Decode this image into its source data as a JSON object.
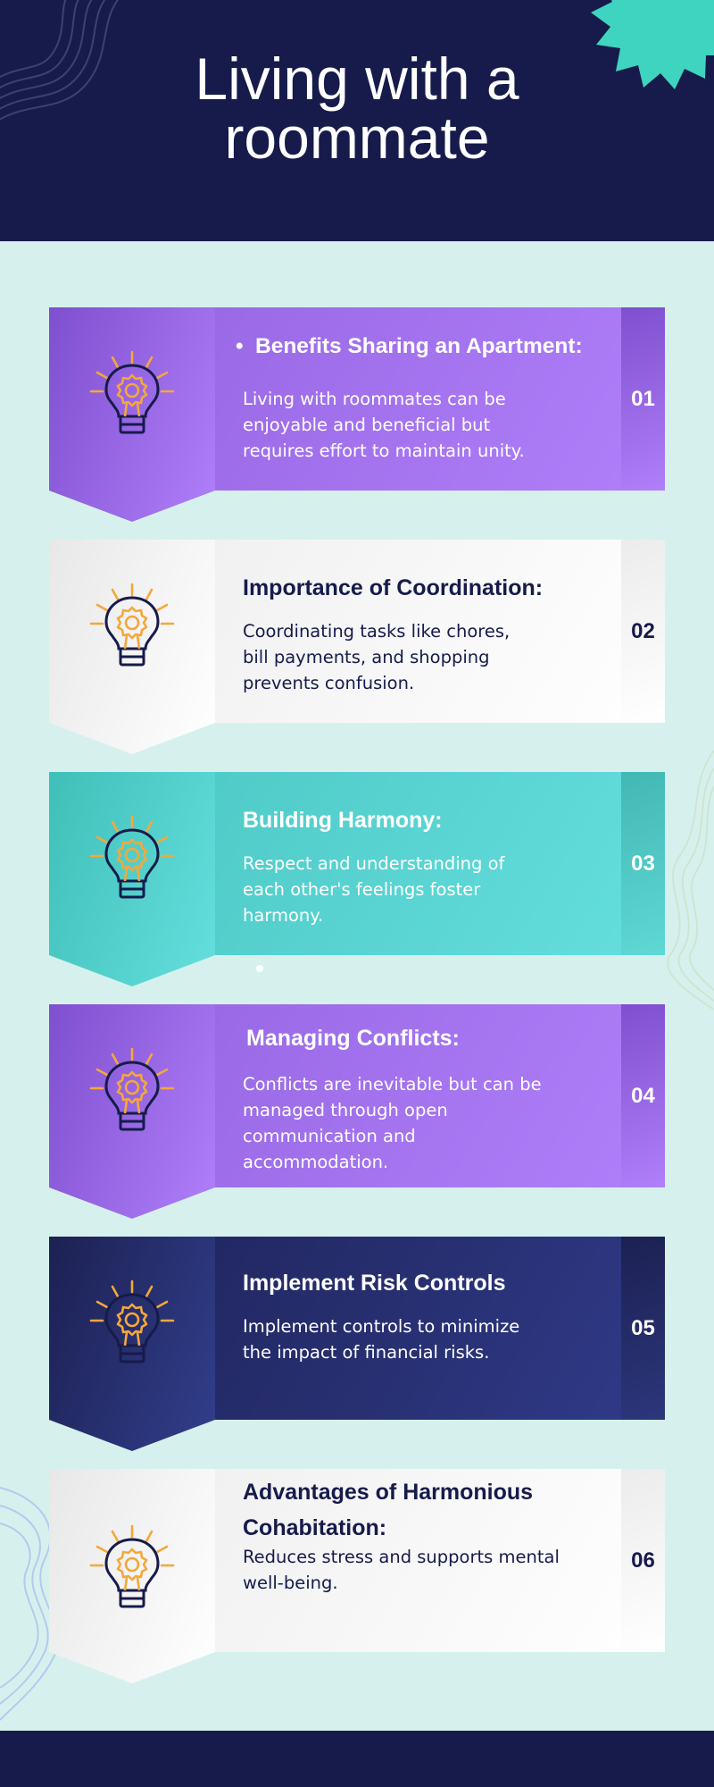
{
  "header": {
    "title_line1": "Living with a",
    "title_line2": "roommate"
  },
  "colors": {
    "navy": "#161b4b",
    "background": "#d6f1ed",
    "purple": "#9a6ae6",
    "teal": "#50cbc8",
    "accent_orange": "#f4a83a",
    "star_teal": "#3fd4c0"
  },
  "cards": [
    {
      "number": "01",
      "title": "Benefits Sharing an Apartment:",
      "text": "Living with roommates can be enjoyable and beneficial but requires effort to maintain unity.",
      "theme": "purple",
      "icon": "lightbulb-gear-icon"
    },
    {
      "number": "02",
      "title": "Importance of Coordination:",
      "text": "Coordinating tasks like chores, bill payments, and shopping prevents confusion.",
      "theme": "white",
      "icon": "lightbulb-gear-icon"
    },
    {
      "number": "03",
      "title": "Building Harmony:",
      "text": "Respect and understanding of each other's feelings foster harmony.",
      "theme": "teal",
      "icon": "lightbulb-gear-icon"
    },
    {
      "number": "04",
      "title": "Managing Conflicts:",
      "text": "Conflicts are inevitable but can be managed through open communication and accommodation.",
      "theme": "purple",
      "icon": "lightbulb-gear-icon"
    },
    {
      "number": "05",
      "title": "Implement Risk Controls",
      "text": "Implement controls to minimize the impact of financial risks.",
      "theme": "navy",
      "icon": "lightbulb-gear-icon"
    },
    {
      "number": "06",
      "title": "Advantages of Harmonious Cohabitation:",
      "text": "Reduces stress and supports mental well-being.",
      "theme": "white",
      "icon": "lightbulb-gear-icon"
    }
  ]
}
